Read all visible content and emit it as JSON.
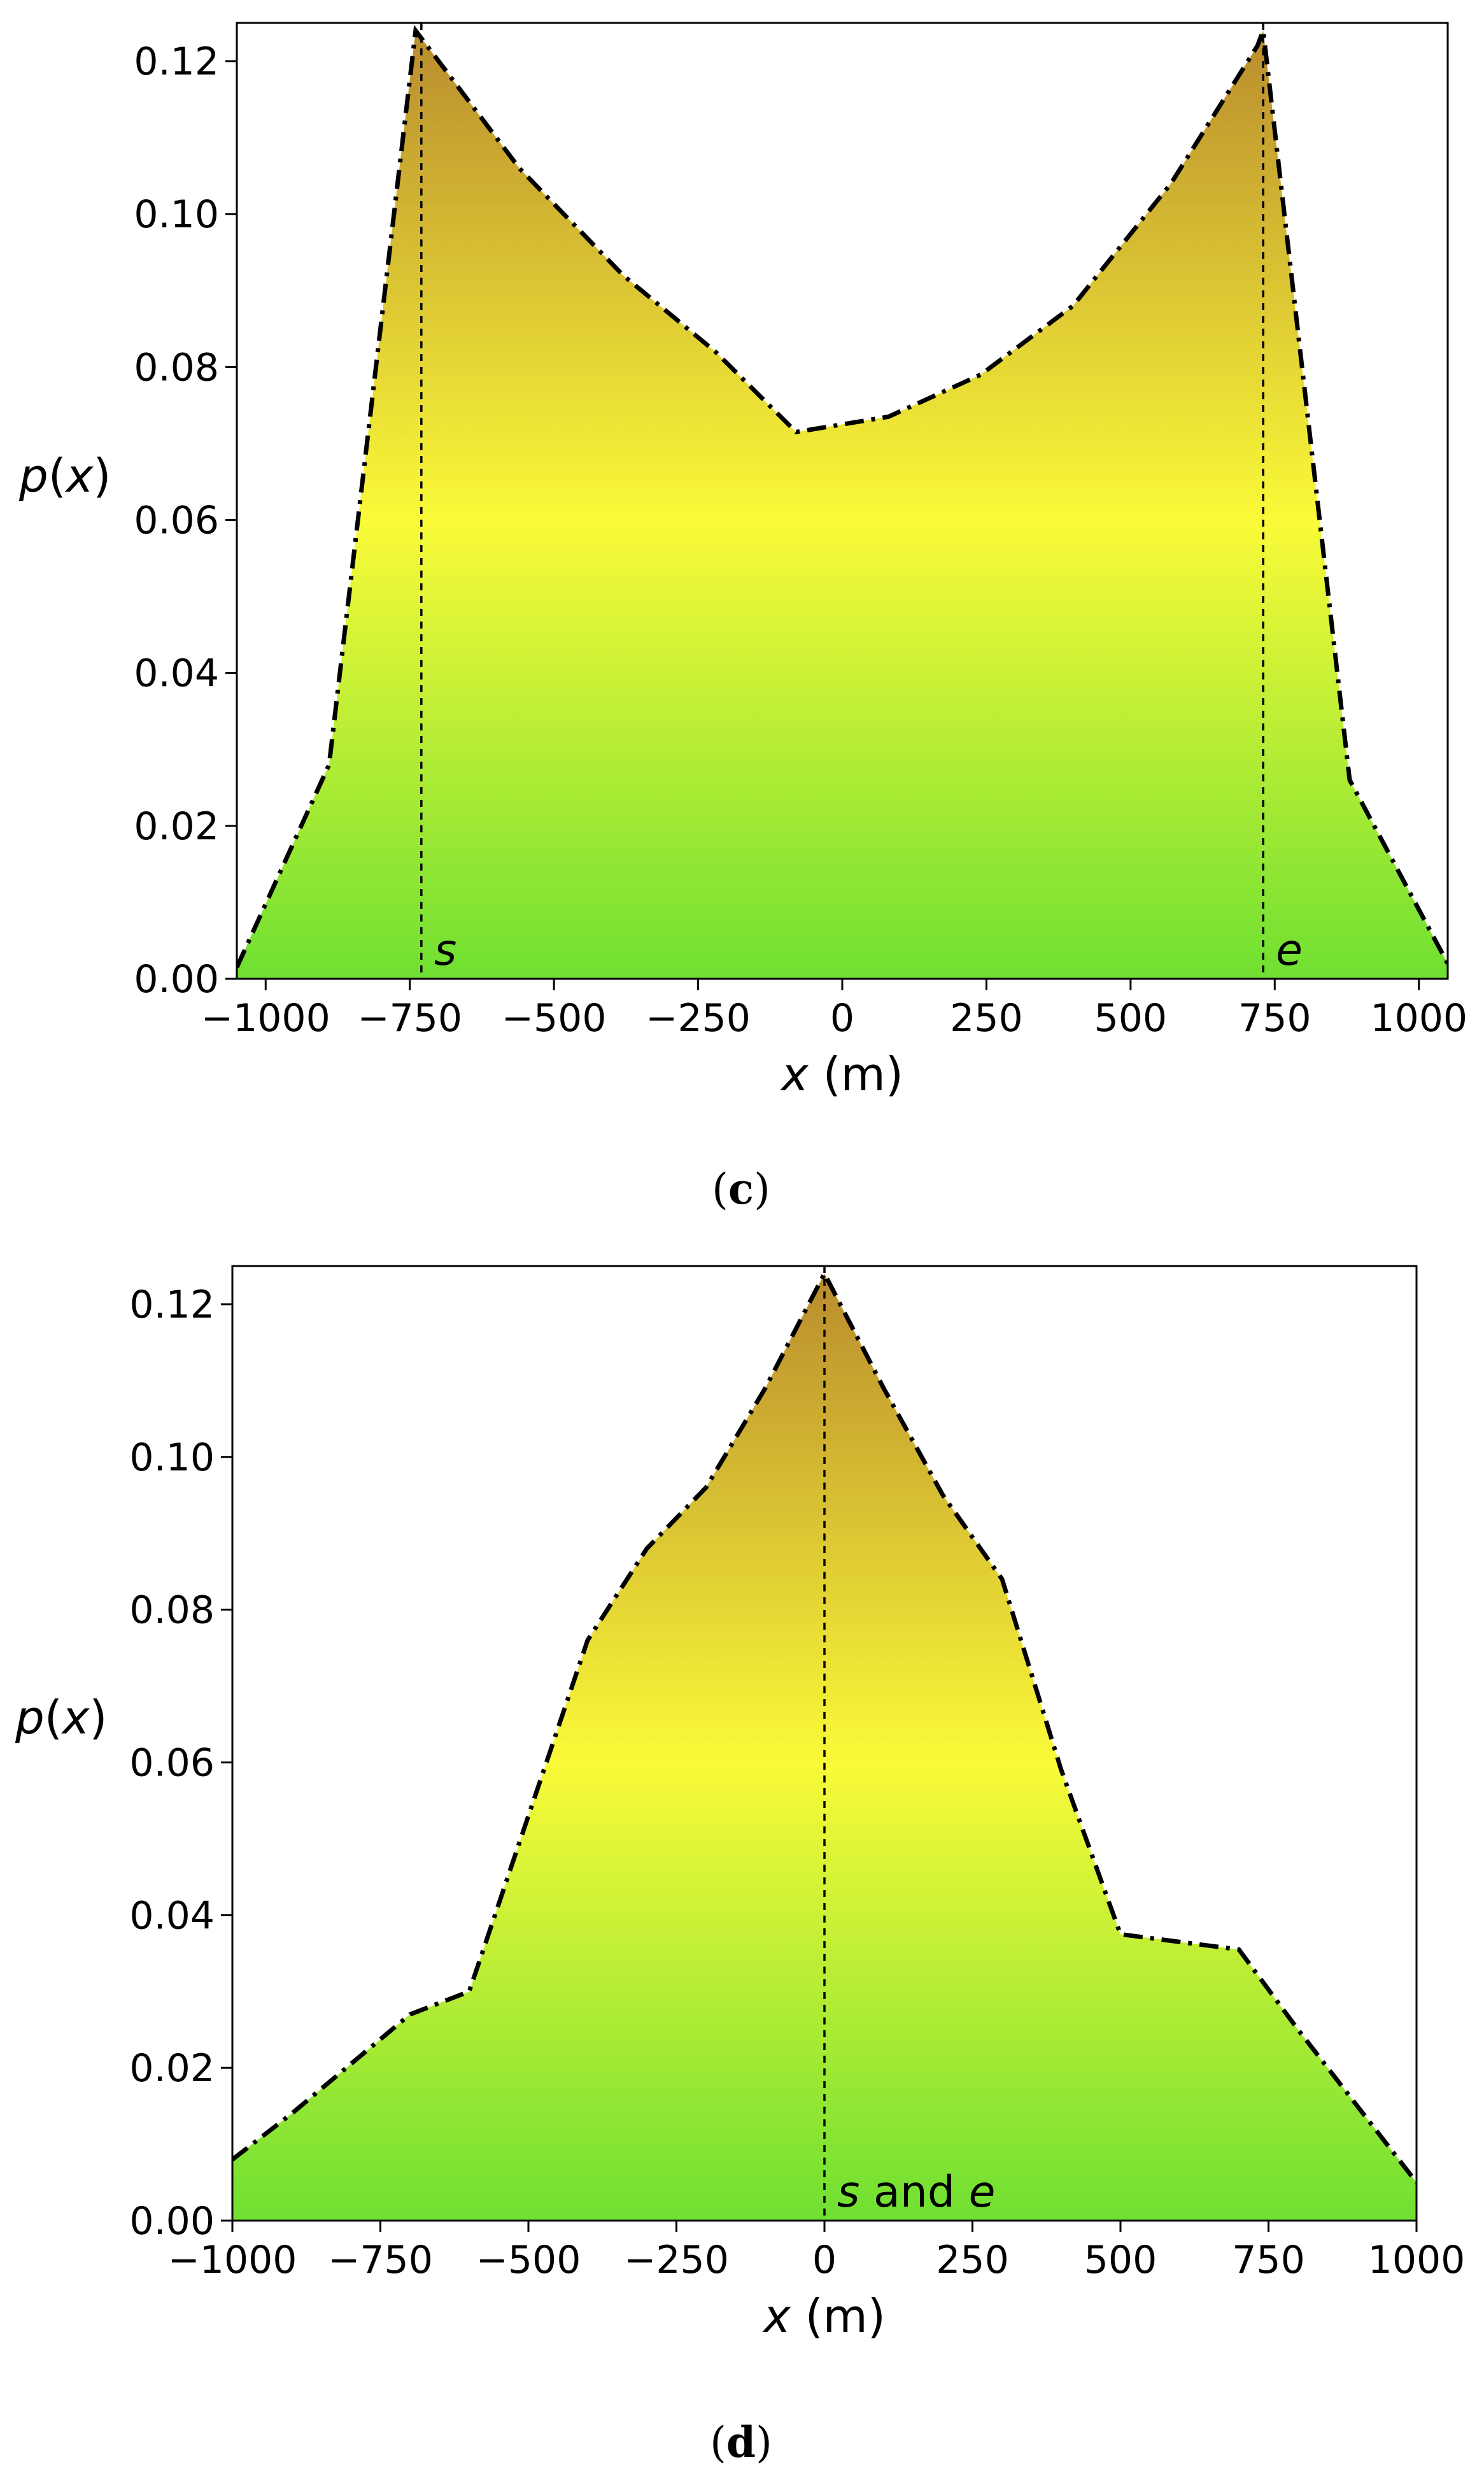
{
  "chart_data": [
    {
      "type": "area",
      "panel_label": "c",
      "xlabel": "x (m)",
      "ylabel": "p(x)",
      "xlim": [
        -1050,
        1050
      ],
      "ylim": [
        0,
        0.125
      ],
      "x_ticks": [
        -1000,
        -750,
        -500,
        -250,
        0,
        250,
        500,
        750,
        1000
      ],
      "x_tick_labels": [
        "−1000",
        "−750",
        "−500",
        "−250",
        "0",
        "250",
        "500",
        "750",
        "1000"
      ],
      "y_ticks": [
        0,
        0.02,
        0.04,
        0.06,
        0.08,
        0.1,
        0.12
      ],
      "y_tick_labels": [
        "0.00",
        "0.02",
        "0.04",
        "0.06",
        "0.08",
        "0.10",
        "0.12"
      ],
      "grid": false,
      "fill": "vertical gradient: green (low) → yellow (~0.06) → dark goldenrod (top)",
      "line_style": "dash-dot, black",
      "series": [
        {
          "x": [
            -1050,
            -890,
            -740,
            -720,
            -560,
            -380,
            -220,
            -80,
            80,
            240,
            400,
            570,
            720,
            730,
            880,
            1050
          ],
          "values": [
            0.0015,
            0.028,
            0.124,
            0.122,
            0.106,
            0.092,
            0.082,
            0.0715,
            0.0735,
            0.079,
            0.088,
            0.104,
            0.122,
            0.124,
            0.026,
            0.002
          ]
        }
      ],
      "vlines": [
        {
          "x": -730,
          "label": "s"
        },
        {
          "x": 730,
          "label": "e"
        }
      ]
    },
    {
      "type": "area",
      "panel_label": "d",
      "xlabel": "x (m)",
      "ylabel": "p(x)",
      "xlim": [
        -1000,
        1000
      ],
      "ylim": [
        0,
        0.125
      ],
      "x_ticks": [
        -1000,
        -750,
        -500,
        -250,
        0,
        250,
        500,
        750,
        1000
      ],
      "x_tick_labels": [
        "−1000",
        "−750",
        "−500",
        "−250",
        "0",
        "250",
        "500",
        "750",
        "1000"
      ],
      "y_ticks": [
        0,
        0.02,
        0.04,
        0.06,
        0.08,
        0.1,
        0.12
      ],
      "y_tick_labels": [
        "0.00",
        "0.02",
        "0.04",
        "0.06",
        "0.08",
        "0.10",
        "0.12"
      ],
      "grid": false,
      "fill": "vertical gradient: green (low) → yellow (~0.06) → dark goldenrod (top)",
      "line_style": "dash-dot, black",
      "series": [
        {
          "x": [
            -1000,
            -900,
            -700,
            -600,
            -500,
            -400,
            -300,
            -200,
            -100,
            0,
            100,
            200,
            300,
            400,
            500,
            700,
            800,
            1000
          ],
          "values": [
            0.008,
            0.014,
            0.027,
            0.03,
            0.053,
            0.076,
            0.088,
            0.096,
            0.109,
            0.124,
            0.109,
            0.095,
            0.084,
            0.059,
            0.0375,
            0.0355,
            0.025,
            0.005
          ]
        }
      ],
      "vlines": [
        {
          "x": 0,
          "label": "s and e"
        }
      ]
    }
  ],
  "colors": {
    "gradient_top": "#c09430",
    "gradient_mid": "#f8f838",
    "gradient_bottom": "#72e034",
    "line": "#000000",
    "frame": "#000000"
  }
}
